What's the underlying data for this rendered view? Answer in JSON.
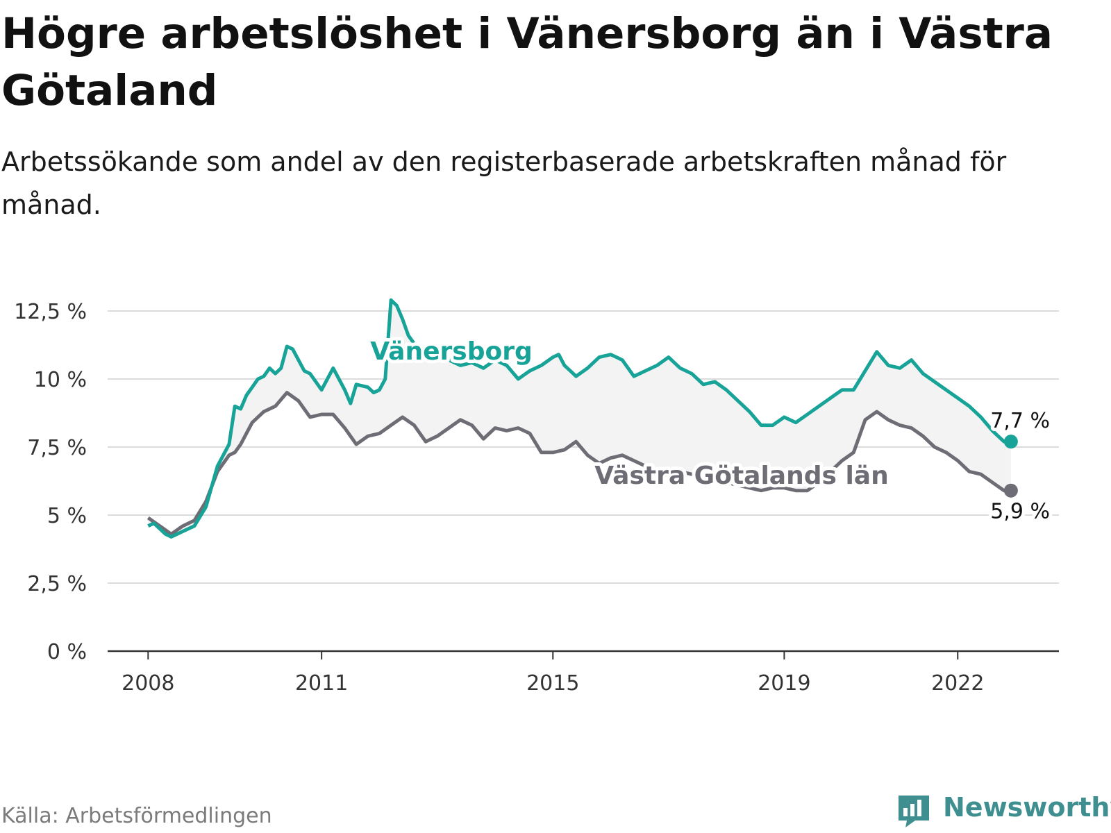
{
  "title": "Högre arbetslöshet i Vänersborg än i Västra Götaland",
  "subtitle": "Arbetssökande som andel av den registerbaserade arbetskraften månad för månad.",
  "source": "Källa: Arbetsförmedlingen",
  "brand": "Newsworthy",
  "colors": {
    "vanersborg": "#17a397",
    "vg": "#6e6d75",
    "band": "#f3f3f3",
    "grid": "#dcdcdc",
    "axis": "#333333",
    "brand": "#3f8f90"
  },
  "icons": {
    "brand_logo": "newsworthy-logo-icon"
  },
  "chart_data": {
    "type": "line",
    "title": "Högre arbetslöshet i Vänersborg än i Västra Götaland",
    "xlabel": "",
    "ylabel": "",
    "ylim": [
      0,
      12.5
    ],
    "xlim": [
      2007.3,
      2023.75
    ],
    "yticks": [
      0,
      2.5,
      5,
      7.5,
      10,
      12.5
    ],
    "ytick_labels": [
      "0 %",
      "2,5 %",
      "5 %",
      "7,5 %",
      "10 %",
      "12,5 %"
    ],
    "xticks": [
      2008,
      2011,
      2015,
      2019,
      2022
    ],
    "xtick_labels": [
      "2008",
      "2011",
      "2015",
      "2019",
      "2022"
    ],
    "grid": true,
    "series": [
      {
        "name": "Vänersborg",
        "label": "Vänersborg",
        "end_label": "7,7 %",
        "x": [
          2008.0,
          2008.1,
          2008.2,
          2008.3,
          2008.4,
          2008.6,
          2008.8,
          2009.0,
          2009.2,
          2009.4,
          2009.5,
          2009.6,
          2009.7,
          2009.8,
          2009.9,
          2010.0,
          2010.1,
          2010.2,
          2010.3,
          2010.4,
          2010.5,
          2010.6,
          2010.7,
          2010.8,
          2011.0,
          2011.2,
          2011.4,
          2011.5,
          2011.6,
          2011.8,
          2011.9,
          2012.0,
          2012.1,
          2012.2,
          2012.3,
          2012.4,
          2012.5,
          2012.6,
          2012.8,
          2013.0,
          2013.2,
          2013.4,
          2013.6,
          2013.8,
          2014.0,
          2014.2,
          2014.4,
          2014.6,
          2014.8,
          2015.0,
          2015.1,
          2015.2,
          2015.3,
          2015.4,
          2015.6,
          2015.8,
          2016.0,
          2016.2,
          2016.4,
          2016.6,
          2016.8,
          2017.0,
          2017.2,
          2017.4,
          2017.6,
          2017.8,
          2018.0,
          2018.2,
          2018.4,
          2018.6,
          2018.8,
          2019.0,
          2019.2,
          2019.4,
          2019.6,
          2019.8,
          2020.0,
          2020.2,
          2020.4,
          2020.6,
          2020.8,
          2021.0,
          2021.2,
          2021.4,
          2021.6,
          2021.8,
          2022.0,
          2022.2,
          2022.4,
          2022.6,
          2022.8,
          2022.92
        ],
        "values": [
          4.6,
          4.7,
          4.5,
          4.3,
          4.2,
          4.4,
          4.6,
          5.3,
          6.8,
          7.6,
          9.0,
          8.9,
          9.4,
          9.7,
          10.0,
          10.1,
          10.4,
          10.2,
          10.4,
          11.2,
          11.1,
          10.7,
          10.3,
          10.2,
          9.6,
          10.4,
          9.6,
          9.1,
          9.8,
          9.7,
          9.5,
          9.6,
          10.0,
          12.9,
          12.7,
          12.2,
          11.6,
          11.3,
          11.0,
          10.9,
          10.7,
          10.5,
          10.6,
          10.4,
          10.7,
          10.5,
          10.0,
          10.3,
          10.5,
          10.8,
          10.9,
          10.5,
          10.3,
          10.1,
          10.4,
          10.8,
          10.9,
          10.7,
          10.1,
          10.3,
          10.5,
          10.8,
          10.4,
          10.2,
          9.8,
          9.9,
          9.6,
          9.2,
          8.8,
          8.3,
          8.3,
          8.6,
          8.4,
          8.7,
          9.0,
          9.3,
          9.6,
          9.6,
          10.3,
          11.0,
          10.5,
          10.4,
          10.7,
          10.2,
          9.9,
          9.6,
          9.3,
          9.0,
          8.6,
          8.1,
          7.7,
          7.7
        ]
      },
      {
        "name": "Västra Götalands län",
        "label": "Västra Götalands län",
        "end_label": "5,9 %",
        "x": [
          2008.0,
          2008.2,
          2008.4,
          2008.6,
          2008.8,
          2009.0,
          2009.2,
          2009.4,
          2009.5,
          2009.6,
          2009.8,
          2010.0,
          2010.2,
          2010.4,
          2010.6,
          2010.8,
          2011.0,
          2011.2,
          2011.4,
          2011.6,
          2011.8,
          2012.0,
          2012.2,
          2012.4,
          2012.6,
          2012.8,
          2013.0,
          2013.2,
          2013.4,
          2013.6,
          2013.8,
          2014.0,
          2014.2,
          2014.4,
          2014.6,
          2014.8,
          2015.0,
          2015.2,
          2015.4,
          2015.6,
          2015.8,
          2016.0,
          2016.2,
          2016.4,
          2016.6,
          2016.8,
          2017.0,
          2017.2,
          2017.4,
          2017.6,
          2017.8,
          2018.0,
          2018.2,
          2018.4,
          2018.6,
          2018.8,
          2019.0,
          2019.2,
          2019.4,
          2019.6,
          2019.8,
          2020.0,
          2020.2,
          2020.4,
          2020.6,
          2020.8,
          2021.0,
          2021.2,
          2021.4,
          2021.6,
          2021.8,
          2022.0,
          2022.2,
          2022.4,
          2022.6,
          2022.8,
          2022.92
        ],
        "values": [
          4.9,
          4.6,
          4.3,
          4.6,
          4.8,
          5.5,
          6.6,
          7.2,
          7.3,
          7.6,
          8.4,
          8.8,
          9.0,
          9.5,
          9.2,
          8.6,
          8.7,
          8.7,
          8.2,
          7.6,
          7.9,
          8.0,
          8.3,
          8.6,
          8.3,
          7.7,
          7.9,
          8.2,
          8.5,
          8.3,
          7.8,
          8.2,
          8.1,
          8.2,
          8.0,
          7.3,
          7.3,
          7.4,
          7.7,
          7.2,
          6.9,
          7.1,
          7.2,
          7.0,
          6.8,
          6.6,
          6.7,
          6.6,
          6.5,
          6.4,
          6.3,
          6.2,
          6.1,
          6.0,
          5.9,
          6.0,
          6.0,
          5.9,
          5.9,
          6.2,
          6.6,
          7.0,
          7.3,
          8.5,
          8.8,
          8.5,
          8.3,
          8.2,
          7.9,
          7.5,
          7.3,
          7.0,
          6.6,
          6.5,
          6.2,
          5.9,
          5.9
        ]
      }
    ]
  }
}
